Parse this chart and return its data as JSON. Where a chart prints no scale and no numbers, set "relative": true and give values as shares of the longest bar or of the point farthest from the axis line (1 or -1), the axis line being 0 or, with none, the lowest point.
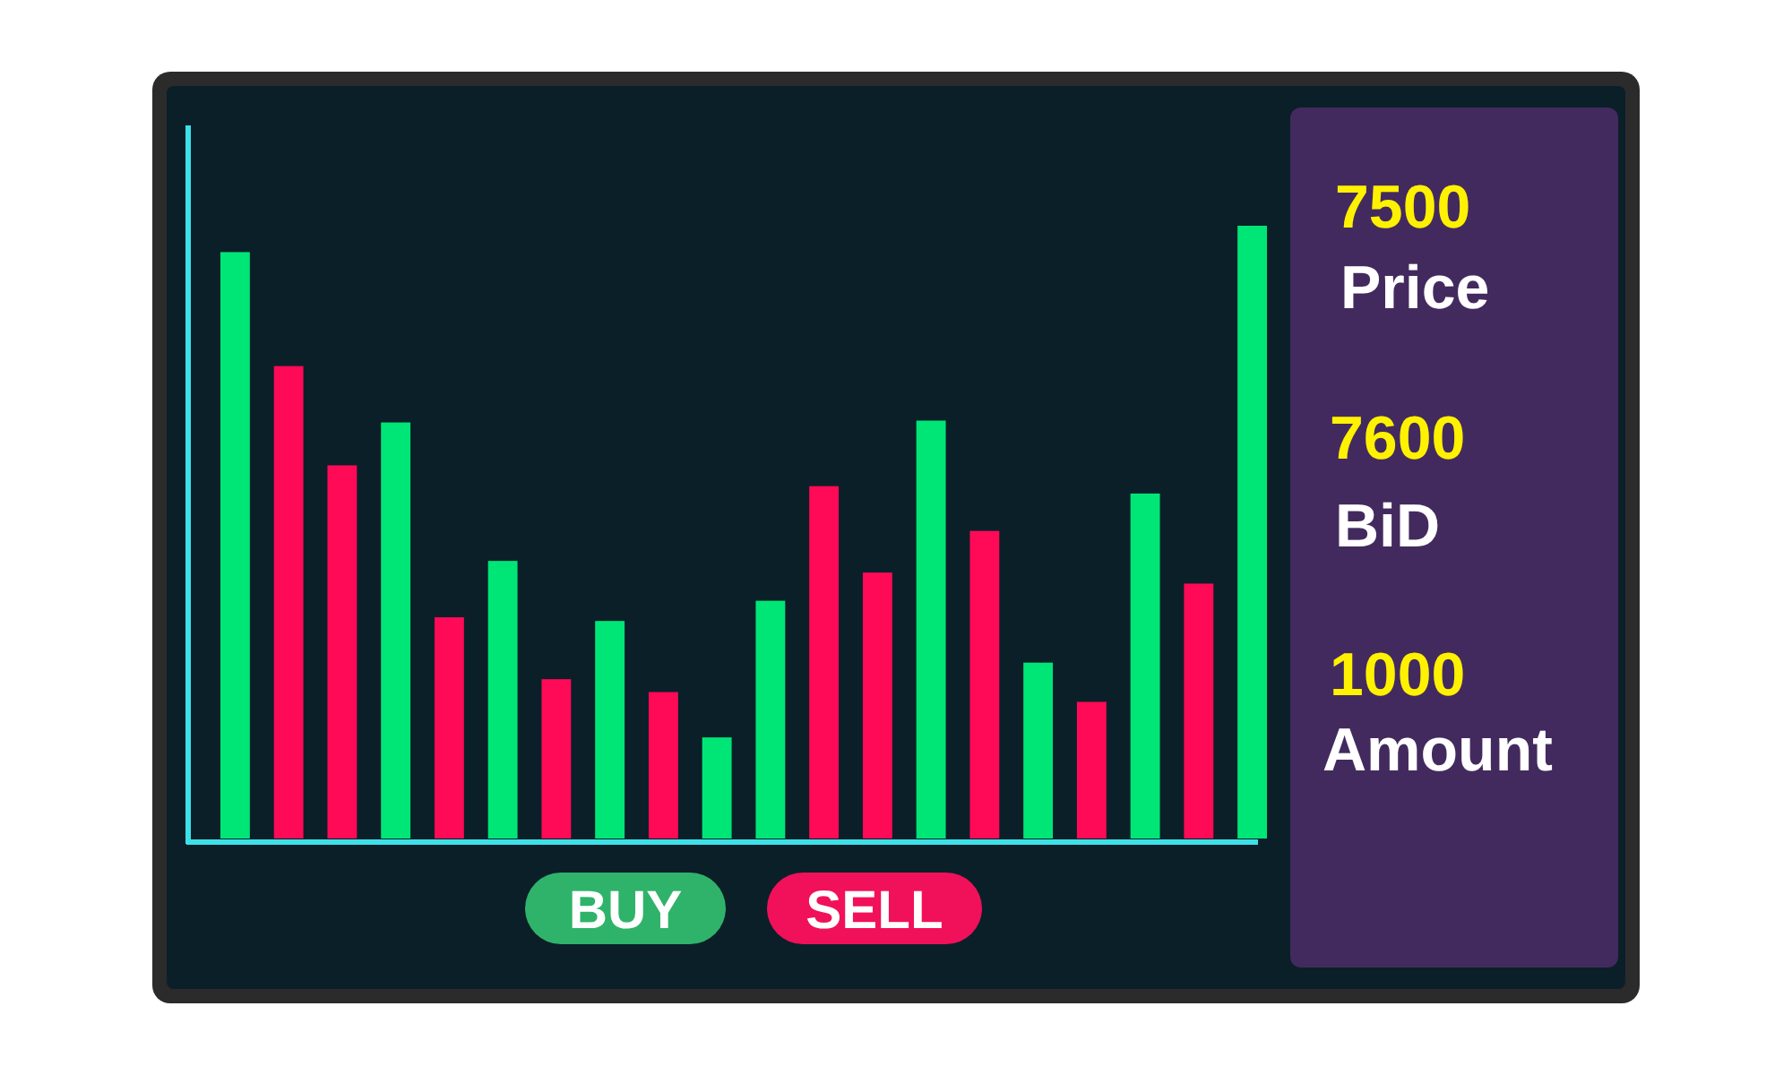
{
  "chart_data": [
    {
      "type": "bar",
      "relative": true,
      "categories": [
        null,
        null,
        null,
        null,
        null,
        null,
        null,
        null,
        null,
        null,
        null,
        null,
        null,
        null,
        null,
        null,
        null,
        null,
        null,
        null
      ],
      "values": [
        0.957,
        0.771,
        0.609,
        0.679,
        0.361,
        0.453,
        0.26,
        0.355,
        0.239,
        0.165,
        0.388,
        0.575,
        0.434,
        0.682,
        0.502,
        0.287,
        0.223,
        0.563,
        0.416,
        1
      ],
      "colors": [
        "#00e676",
        "#ff0a56",
        "#ff0a56",
        "#00e676",
        "#ff0a56",
        "#00e676",
        "#ff0a56",
        "#00e676",
        "#ff0a56",
        "#00e676",
        "#00e676",
        "#ff0a56",
        "#ff0a56",
        "#00e676",
        "#ff0a56",
        "#00e676",
        "#ff0a56",
        "#00e676",
        "#ff0a56",
        "#00e676"
      ],
      "annotations": [
        "BUY",
        "SELL"
      ]
    },
    {
      "type": "other",
      "annotations": [
        "7500",
        "Price",
        "7600",
        "BiD",
        "1000",
        "Amount"
      ]
    }
  ]
}
